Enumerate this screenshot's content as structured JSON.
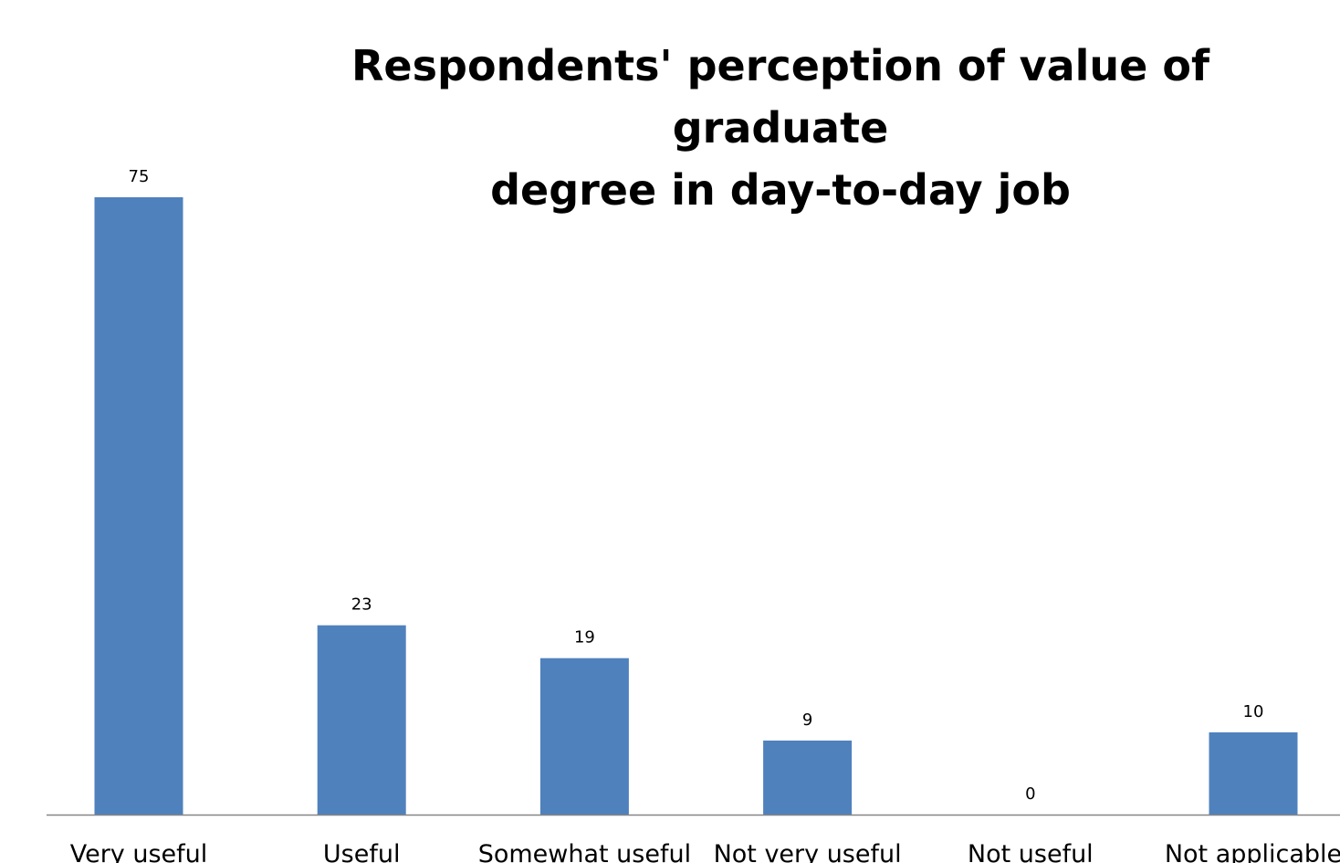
{
  "chart_data": {
    "type": "bar",
    "title_lines": [
      "Respondents' perception of value of graduate",
      "degree in day-to-day job"
    ],
    "categories": [
      "Very useful",
      "Useful",
      "Somewhat useful",
      "Not very useful",
      "Not useful",
      "Not applicable"
    ],
    "values": [
      75,
      23,
      19,
      9,
      0,
      10
    ],
    "xlabel": "",
    "ylabel": "",
    "ylim": [
      0,
      80
    ],
    "grid": false,
    "legend": "none",
    "bar_color": "#4F81BD",
    "axis_color": "#868686"
  }
}
